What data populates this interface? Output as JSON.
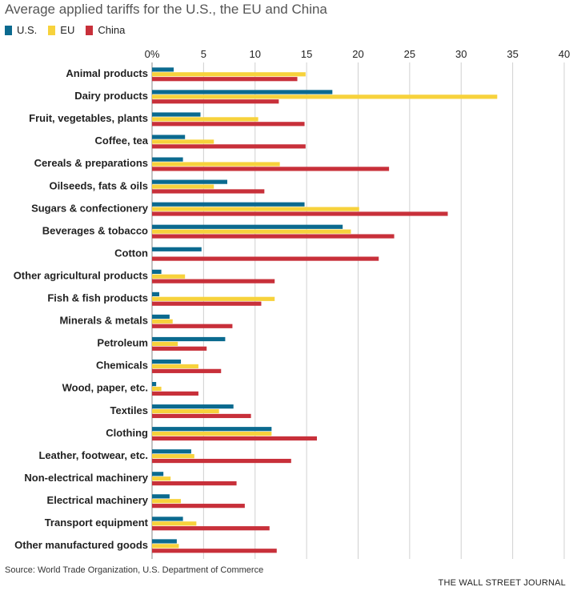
{
  "title": "Average applied tariffs for the U.S., the EU and China",
  "source": "Source: World Trade Organization, U.S. Department of Commerce",
  "credit": "THE WALL STREET JOURNAL",
  "colors": {
    "us": "#0b6a8f",
    "eu": "#f7d23c",
    "china": "#c8303a",
    "grid": "#d0d0d0"
  },
  "chart_data": {
    "type": "bar",
    "orientation": "horizontal",
    "xlim": [
      0,
      40
    ],
    "xticks": [
      "0%",
      "5",
      "10",
      "15",
      "20",
      "25",
      "30",
      "35",
      "40"
    ],
    "grid": true,
    "legend_position": "top-left",
    "categories": [
      "Animal products",
      "Dairy products",
      "Fruit, vegetables, plants",
      "Coffee, tea",
      "Cereals & preparations",
      "Oilseeds, fats & oils",
      "Sugars & confectionery",
      "Beverages & tobacco",
      "Cotton",
      "Other agricultural products",
      "Fish & fish products",
      "Minerals & metals",
      "Petroleum",
      "Chemicals",
      "Wood, paper, etc.",
      "Textiles",
      "Clothing",
      "Leather, footwear, etc.",
      "Non-electrical machinery",
      "Electrical machinery",
      "Transport equipment",
      "Other manufactured goods"
    ],
    "series": [
      {
        "name": "U.S.",
        "color": "#0b6a8f",
        "values": [
          2.1,
          17.5,
          4.7,
          3.2,
          3.0,
          7.3,
          14.8,
          18.5,
          4.8,
          0.9,
          0.7,
          1.7,
          7.1,
          2.8,
          0.4,
          7.9,
          11.6,
          3.8,
          1.1,
          1.7,
          3.0,
          2.4
        ]
      },
      {
        "name": "EU",
        "color": "#f7d23c",
        "values": [
          14.9,
          33.5,
          10.3,
          6.0,
          12.4,
          6.0,
          20.1,
          19.3,
          0.0,
          3.2,
          11.9,
          2.0,
          2.5,
          4.5,
          0.9,
          6.5,
          11.6,
          4.1,
          1.8,
          2.8,
          4.3,
          2.6
        ]
      },
      {
        "name": "China",
        "color": "#c8303a",
        "values": [
          14.1,
          12.3,
          14.8,
          14.9,
          23.0,
          10.9,
          28.7,
          23.5,
          22.0,
          11.9,
          10.6,
          7.8,
          5.3,
          6.7,
          4.5,
          9.6,
          16.0,
          13.5,
          8.2,
          9.0,
          11.4,
          12.1
        ]
      }
    ]
  }
}
